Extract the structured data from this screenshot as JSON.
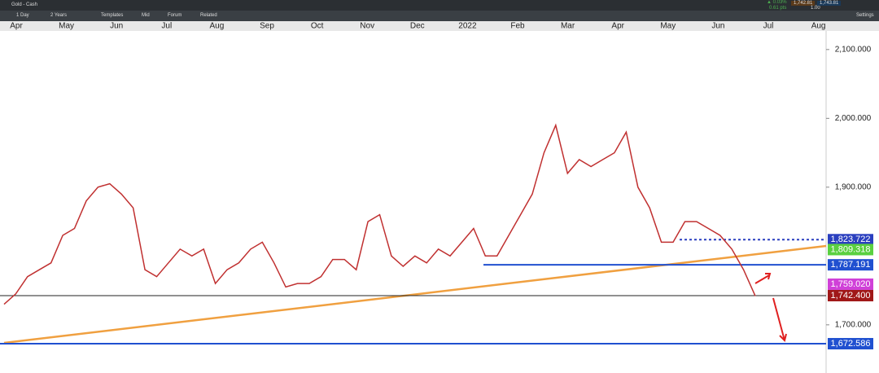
{
  "toolbar": {
    "instrument": "Gold - Cash",
    "change_pct": "▲ 0.03%",
    "change_pts": "0.61 pts",
    "sell": "1,742.81",
    "spread": "1.00",
    "buy": "1,743.81",
    "interval": "1 Day",
    "range": "2 Years",
    "templates": "Templates",
    "mid": "Mid",
    "forum": "Forum",
    "related": "Related",
    "settings": "Settings"
  },
  "chart_data": {
    "type": "line",
    "x_labels": [
      "Apr",
      "May",
      "Jun",
      "Jul",
      "Aug",
      "Sep",
      "Oct",
      "Nov",
      "Dec",
      "2022",
      "Feb",
      "Mar",
      "Apr",
      "May",
      "Jun",
      "Jul",
      "Aug"
    ],
    "color": "#c03030",
    "values": [
      1730,
      1745,
      1770,
      1780,
      1790,
      1830,
      1840,
      1880,
      1900,
      1905,
      1890,
      1870,
      1780,
      1770,
      1790,
      1810,
      1800,
      1810,
      1760,
      1780,
      1790,
      1810,
      1820,
      1790,
      1755,
      1760,
      1760,
      1770,
      1795,
      1795,
      1780,
      1850,
      1860,
      1800,
      1785,
      1800,
      1790,
      1810,
      1800,
      1820,
      1840,
      1800,
      1800,
      1830,
      1860,
      1890,
      1950,
      1990,
      1920,
      1940,
      1930,
      1940,
      1950,
      1980,
      1900,
      1870,
      1820,
      1820,
      1850,
      1850,
      1840,
      1830,
      1810,
      1780,
      1742
    ],
    "ylim": [
      1630,
      2127
    ],
    "yticks": [
      {
        "value": 2100,
        "label": "2,100.000"
      },
      {
        "value": 2000,
        "label": "2,000.000"
      },
      {
        "value": 1900,
        "label": "1,900.000"
      },
      {
        "value": 1700,
        "label": "1,700.000"
      }
    ],
    "levels": [
      {
        "value": 1823.722,
        "label": "1,823.722",
        "color": "#2a3fbf",
        "style": "dotted"
      },
      {
        "value": 1809.318,
        "label": "1,809.318",
        "color": "#5ad040",
        "style": "none"
      },
      {
        "value": 1787.191,
        "label": "1,787.191",
        "color": "#2050d0",
        "style": "solid"
      },
      {
        "value": 1759.02,
        "label": "1,759.020",
        "color": "#d040d8",
        "style": "none"
      },
      {
        "value": 1742.4,
        "label": "1,742.400",
        "color": "#a01818",
        "style": "black"
      },
      {
        "value": 1672.586,
        "label": "1,672.586",
        "color": "#2050d0",
        "style": "solid"
      }
    ]
  }
}
